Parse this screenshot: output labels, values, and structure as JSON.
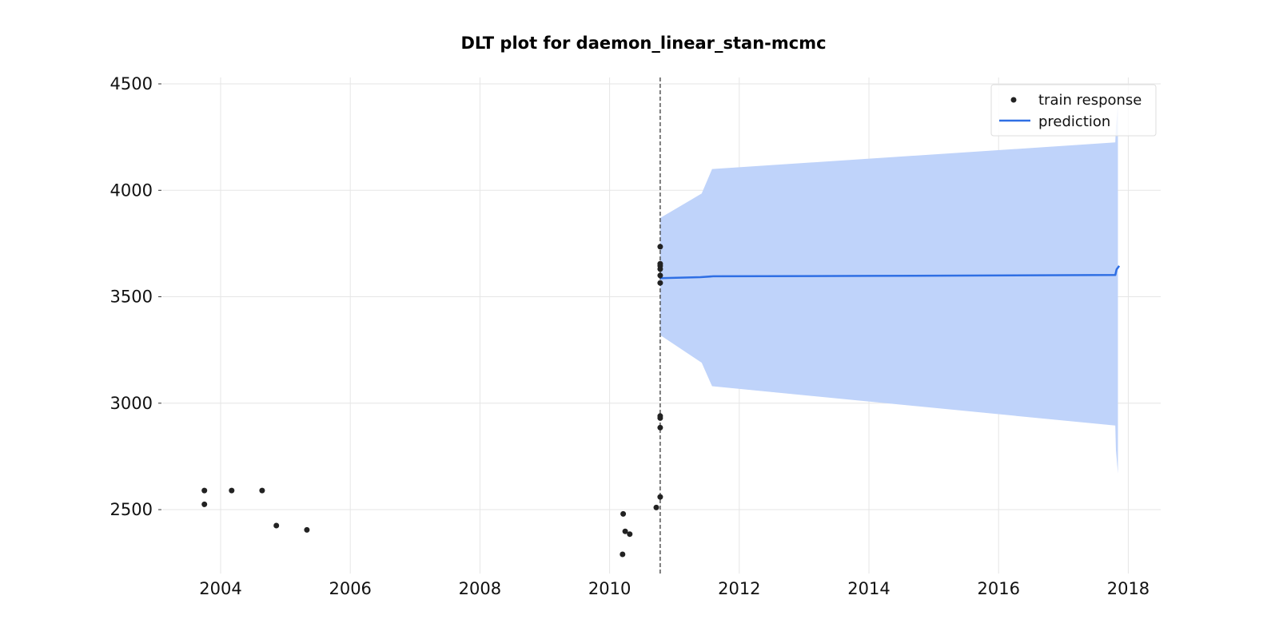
{
  "chart_data": {
    "type": "line",
    "title": "DLT plot for daemon_linear_stan-mcmc",
    "xlabel": "",
    "ylabel": "",
    "x_axis": "date",
    "xlim": [
      2003.1,
      2018.5
    ],
    "ylim": [
      2200,
      4530
    ],
    "x_ticks": [
      2004,
      2006,
      2008,
      2010,
      2012,
      2014,
      2016,
      2018
    ],
    "x_tick_labels": [
      "2004",
      "2006",
      "2008",
      "2010",
      "2012",
      "2014",
      "2016",
      "2018"
    ],
    "y_ticks": [
      2500,
      3000,
      3500,
      4000,
      4500
    ],
    "y_tick_labels": [
      "2500",
      "3000",
      "3500",
      "4000",
      "4500"
    ],
    "grid": true,
    "legend": {
      "placement": "top-right",
      "entries": [
        "train response",
        "prediction"
      ]
    },
    "colors": {
      "train": "#222222",
      "prediction": "#2f6fe4",
      "band": "#bfd3fa",
      "cutoff": "#555555"
    },
    "cutoff_x": 2010.78,
    "series": [
      {
        "name": "train response",
        "kind": "scatter",
        "points": [
          [
            2003.75,
            2590
          ],
          [
            2003.75,
            2525
          ],
          [
            2004.17,
            2590
          ],
          [
            2004.64,
            2590
          ],
          [
            2004.86,
            2425
          ],
          [
            2005.33,
            2405
          ],
          [
            2010.2,
            2290
          ],
          [
            2010.21,
            2480
          ],
          [
            2010.24,
            2398
          ],
          [
            2010.31,
            2385
          ],
          [
            2010.72,
            2510
          ],
          [
            2010.78,
            2560
          ],
          [
            2010.78,
            2885
          ],
          [
            2010.78,
            2930
          ],
          [
            2010.78,
            2940
          ],
          [
            2010.78,
            3565
          ],
          [
            2010.78,
            3600
          ],
          [
            2010.78,
            3630
          ],
          [
            2010.78,
            3645
          ],
          [
            2010.78,
            3655
          ],
          [
            2010.78,
            3735
          ]
        ]
      },
      {
        "name": "prediction",
        "kind": "line",
        "points": [
          [
            2010.78,
            3587
          ],
          [
            2011.4,
            3592
          ],
          [
            2011.6,
            3596
          ],
          [
            2014.0,
            3598
          ],
          [
            2017.8,
            3602
          ],
          [
            2017.82,
            3628
          ],
          [
            2017.86,
            3645
          ]
        ]
      }
    ],
    "band": {
      "x": [
        2010.78,
        2011.42,
        2011.58,
        2017.8,
        2017.81,
        2017.84
      ],
      "upper": [
        3870,
        3985,
        4100,
        4225,
        4300,
        4400
      ],
      "lower": [
        3320,
        3190,
        3080,
        2895,
        2780,
        2670
      ]
    }
  }
}
